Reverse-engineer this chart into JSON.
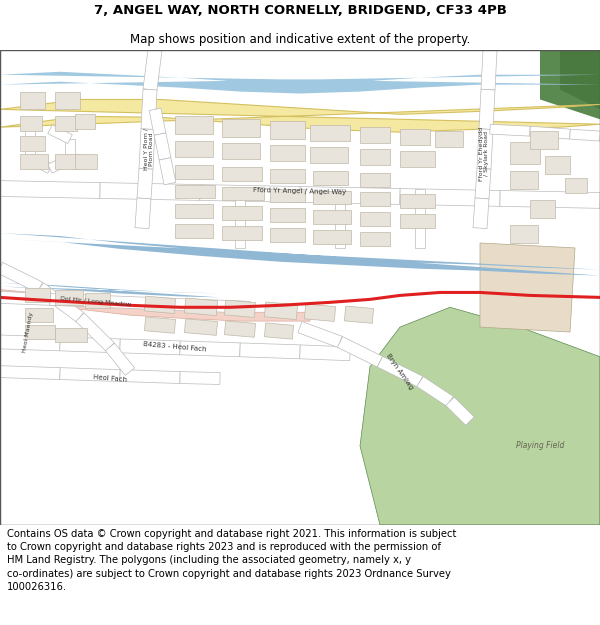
{
  "title_line1": "7, ANGEL WAY, NORTH CORNELLY, BRIDGEND, CF33 4PB",
  "title_line2": "Map shows position and indicative extent of the property.",
  "footer_lines": "Contains OS data © Crown copyright and database right 2021. This information is subject\nto Crown copyright and database rights 2023 and is reproduced with the permission of\nHM Land Registry. The polygons (including the associated geometry, namely x, y\nco-ordinates) are subject to Crown copyright and database rights 2023 Ordnance Survey\n100026316.",
  "fig_width": 6.0,
  "fig_height": 6.25,
  "dpi": 100,
  "title_fontsize": 9.5,
  "subtitle_fontsize": 8.5,
  "footer_fontsize": 7.2,
  "colors": {
    "map_bg": "#f5f4f0",
    "road_yellow_fill": "#f5e8a0",
    "road_yellow_edge": "#d4c060",
    "blue_river": "#a0c8e0",
    "blue_stream": "#90b8d4",
    "building_fill": "#e8e4dc",
    "building_edge": "#c0b8a8",
    "green_field": "#b8d4a0",
    "green_dark": "#5a8a50",
    "beige_area": "#e8dcc8",
    "red_line": "#e02020",
    "pink_fill": "#f0c0b0",
    "road_fill": "#ffffff",
    "road_edge": "#cccccc",
    "text_color": "#333333"
  }
}
